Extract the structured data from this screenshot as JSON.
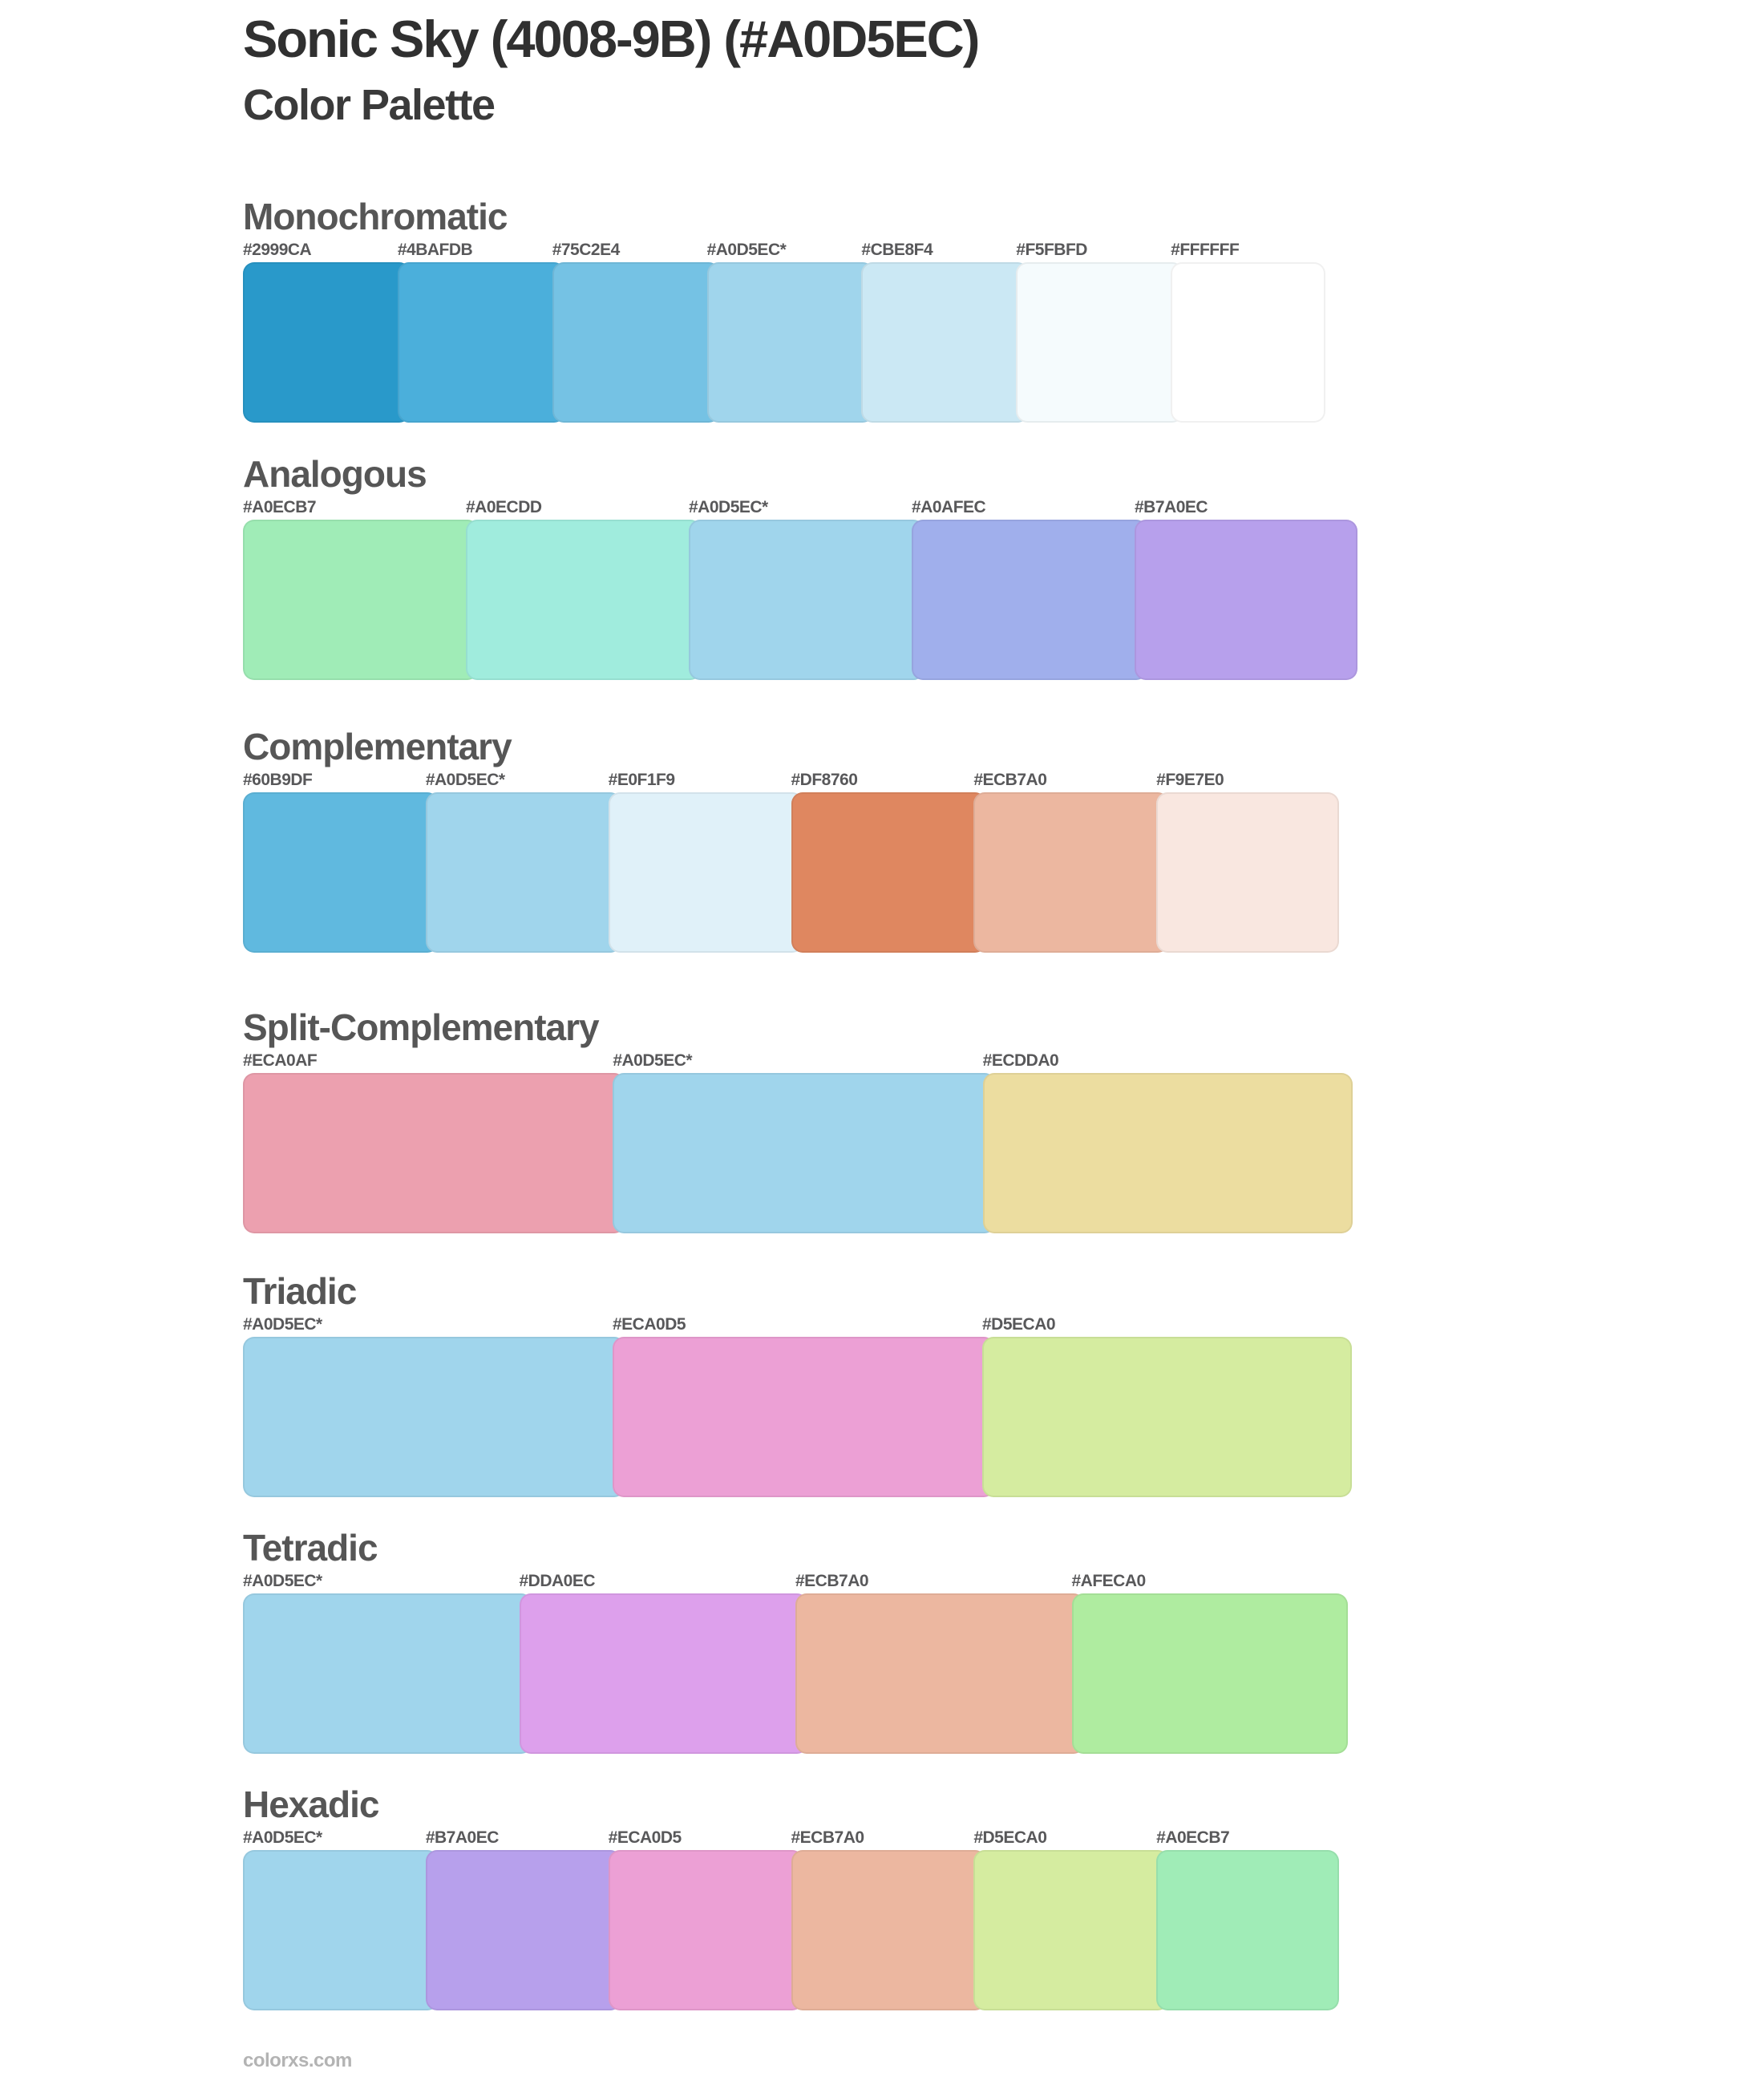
{
  "page": {
    "title": "Sonic Sky (4008-9B) (#A0D5EC)",
    "subtitle": "Color Palette",
    "base_color": "#A0D5EC",
    "footer": "colorxs.com"
  },
  "sections": [
    {
      "name": "Monochromatic",
      "swatches": [
        {
          "label": "#2999CA",
          "color": "#2999CA"
        },
        {
          "label": "#4BAFDB",
          "color": "#4BAFDB"
        },
        {
          "label": "#75C2E4",
          "color": "#75C2E4"
        },
        {
          "label": "#A0D5EC*",
          "color": "#A0D5EC"
        },
        {
          "label": "#CBE8F4",
          "color": "#CBE8F4"
        },
        {
          "label": "#F5FBFD",
          "color": "#F5FBFD"
        },
        {
          "label": "#FFFFFF",
          "color": "#FFFFFF"
        }
      ]
    },
    {
      "name": "Analogous",
      "swatches": [
        {
          "label": "#A0ECB7",
          "color": "#A0ECB7"
        },
        {
          "label": "#A0ECDD",
          "color": "#A0ECDD"
        },
        {
          "label": "#A0D5EC*",
          "color": "#A0D5EC"
        },
        {
          "label": "#A0AFEC",
          "color": "#A0AFEC"
        },
        {
          "label": "#B7A0EC",
          "color": "#B7A0EC"
        }
      ]
    },
    {
      "name": "Complementary",
      "swatches": [
        {
          "label": "#60B9DF",
          "color": "#60B9DF"
        },
        {
          "label": "#A0D5EC*",
          "color": "#A0D5EC"
        },
        {
          "label": "#E0F1F9",
          "color": "#E0F1F9"
        },
        {
          "label": "#DF8760",
          "color": "#DF8760"
        },
        {
          "label": "#ECB7A0",
          "color": "#ECB7A0"
        },
        {
          "label": "#F9E7E0",
          "color": "#F9E7E0"
        }
      ]
    },
    {
      "name": "Split-Complementary",
      "swatches": [
        {
          "label": "#ECA0AF",
          "color": "#ECA0AF"
        },
        {
          "label": "#A0D5EC*",
          "color": "#A0D5EC"
        },
        {
          "label": "#ECDDA0",
          "color": "#ECDDA0"
        }
      ]
    },
    {
      "name": "Triadic",
      "swatches": [
        {
          "label": "#A0D5EC*",
          "color": "#A0D5EC"
        },
        {
          "label": "#ECA0D5",
          "color": "#ECA0D5"
        },
        {
          "label": "#D5ECA0",
          "color": "#D5ECA0"
        }
      ]
    },
    {
      "name": "Tetradic",
      "swatches": [
        {
          "label": "#A0D5EC*",
          "color": "#A0D5EC"
        },
        {
          "label": "#DDA0EC",
          "color": "#DDA0EC"
        },
        {
          "label": "#ECB7A0",
          "color": "#ECB7A0"
        },
        {
          "label": "#AFECA0",
          "color": "#AFECA0"
        }
      ]
    },
    {
      "name": "Hexadic",
      "swatches": [
        {
          "label": "#A0D5EC*",
          "color": "#A0D5EC"
        },
        {
          "label": "#B7A0EC",
          "color": "#B7A0EC"
        },
        {
          "label": "#ECA0D5",
          "color": "#ECA0D5"
        },
        {
          "label": "#ECB7A0",
          "color": "#ECB7A0"
        },
        {
          "label": "#D5ECA0",
          "color": "#D5ECA0"
        },
        {
          "label": "#A0ECB7",
          "color": "#A0ECB7"
        }
      ]
    }
  ]
}
